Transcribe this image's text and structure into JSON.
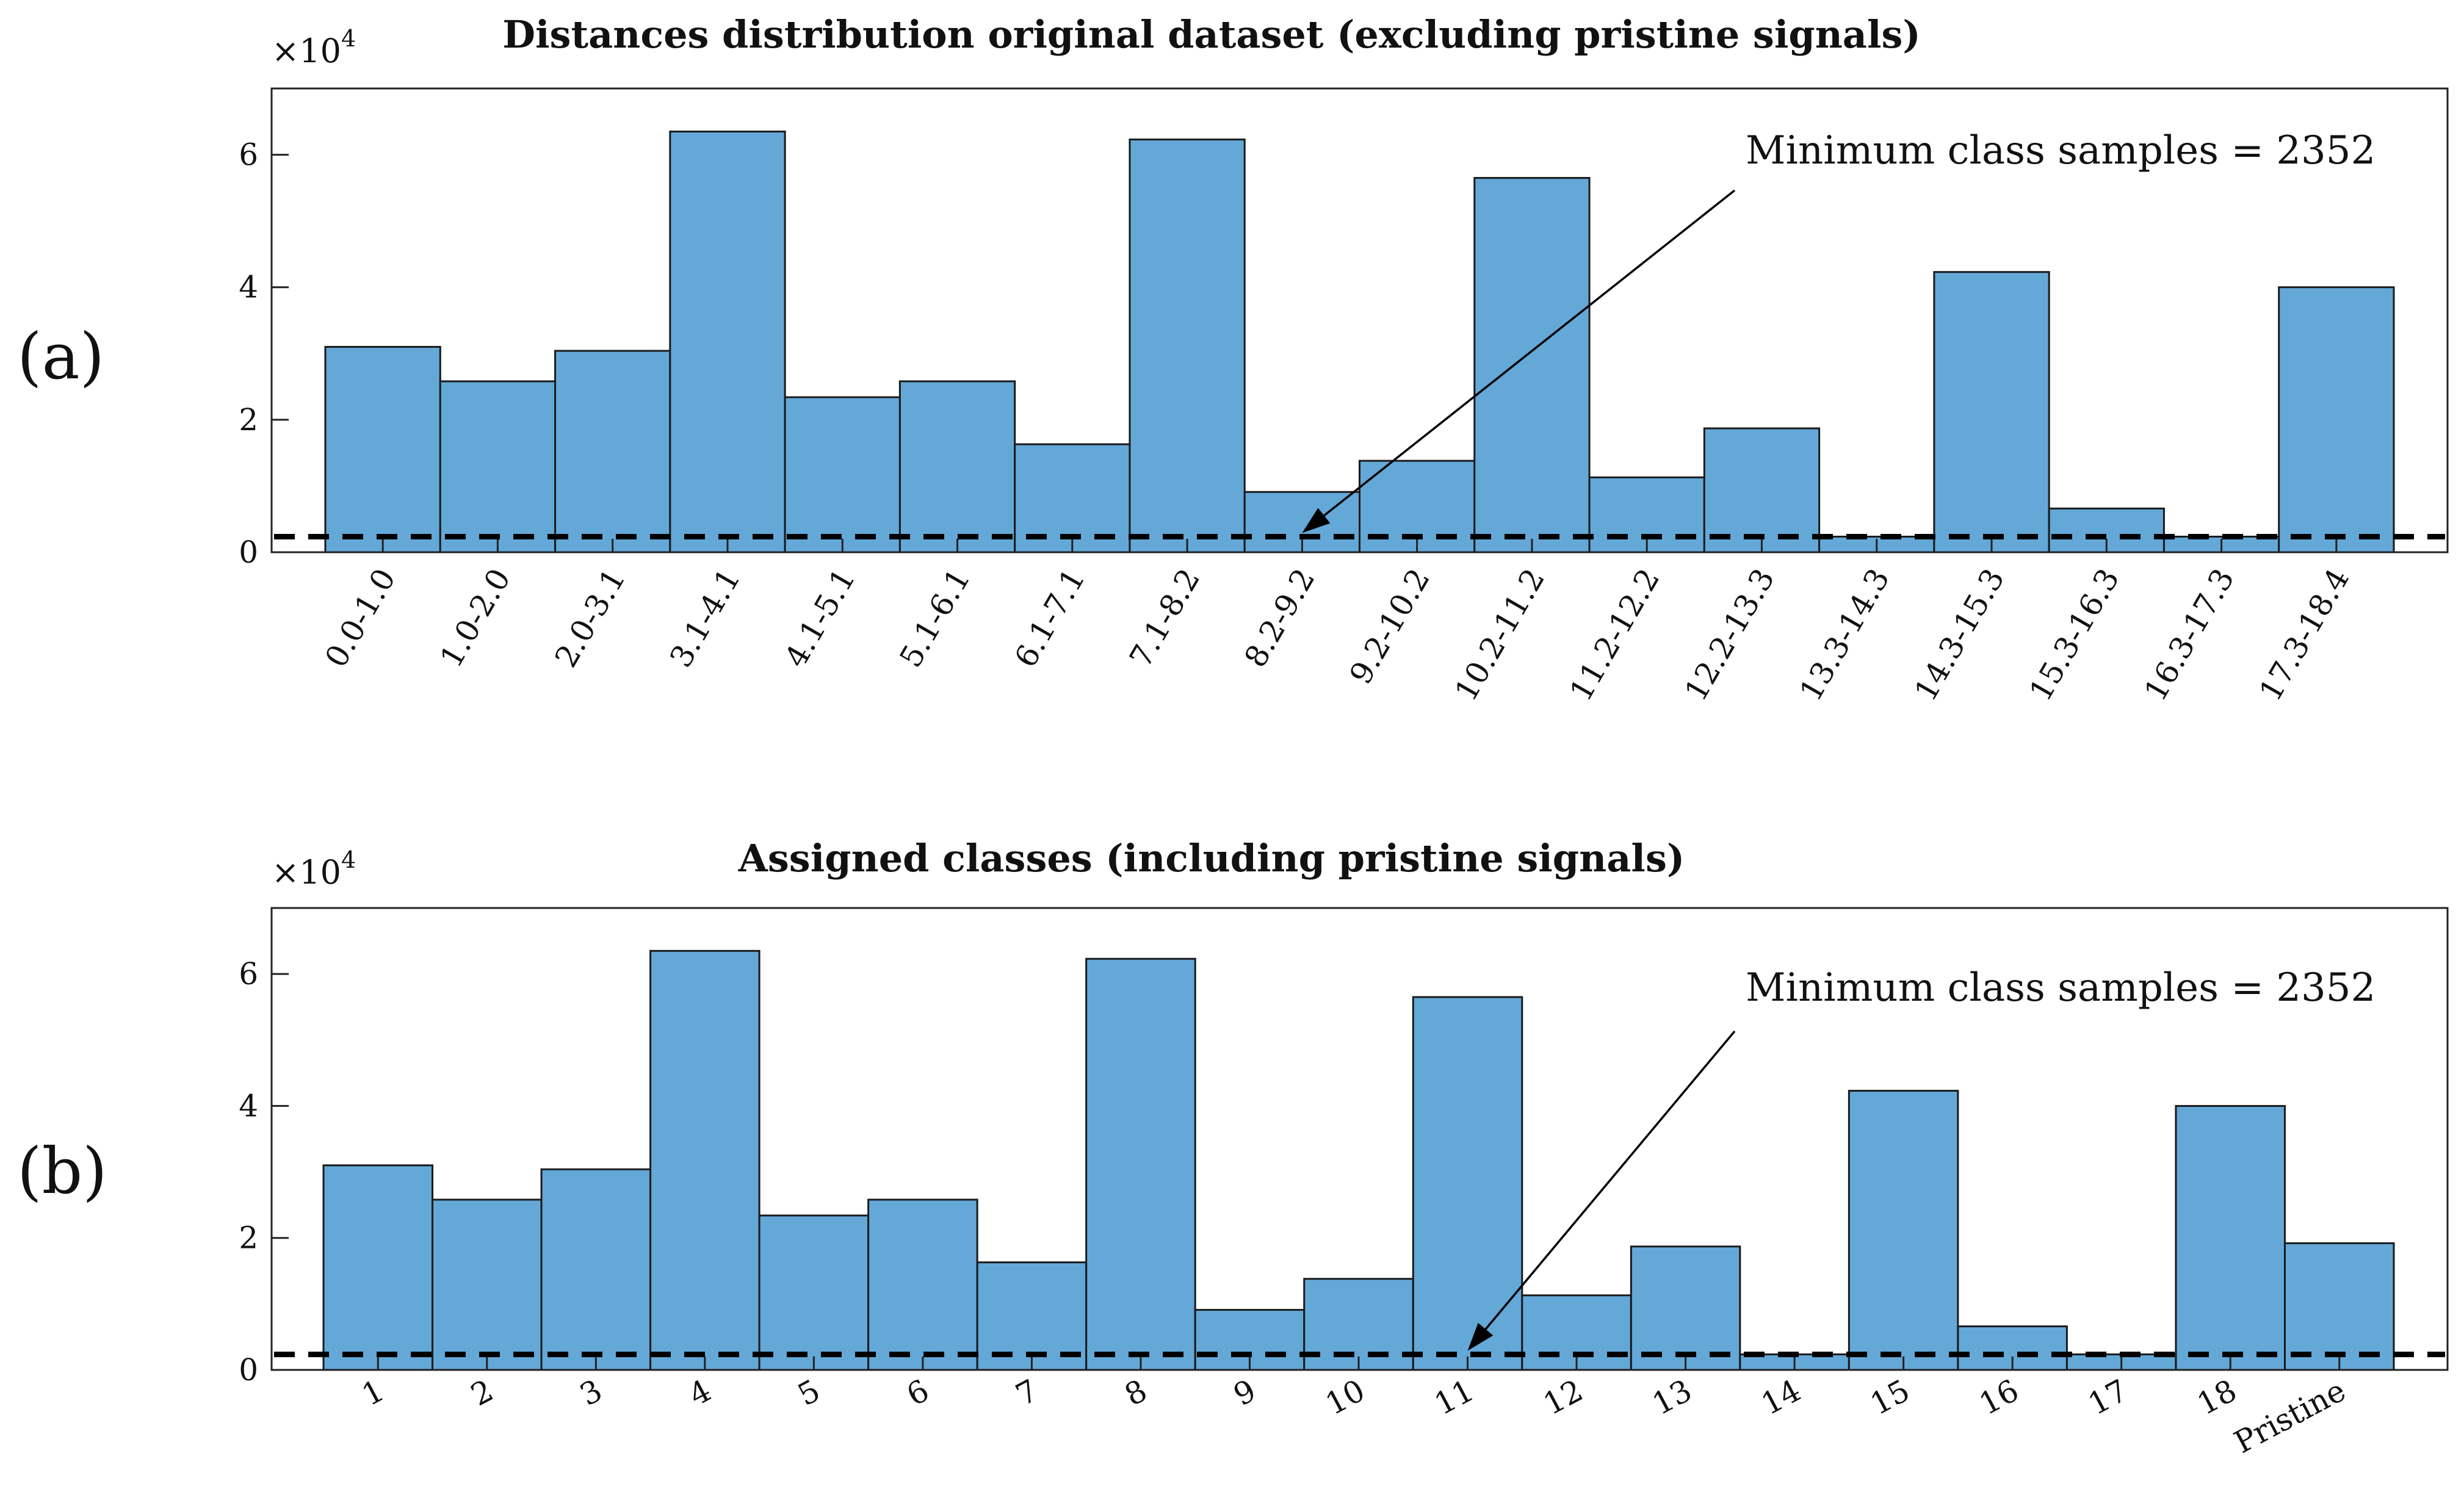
{
  "chart_data": [
    {
      "type": "bar",
      "panel_label": "(a)",
      "title": "Distances distribution original dataset (excluding pristine signals)",
      "exponent_label": {
        "base": "×10",
        "power": "4"
      },
      "categories": [
        "0.0-1.0",
        "1.0-2.0",
        "2.0-3.1",
        "3.1-4.1",
        "4.1-5.1",
        "5.1-6.1",
        "6.1-7.1",
        "7.1-8.2",
        "8.2-9.2",
        "9.2-10.2",
        "10.2-11.2",
        "11.2-12.2",
        "12.2-13.3",
        "13.3-14.3",
        "14.3-15.3",
        "15.3-16.3",
        "16.3-17.3",
        "17.3-18.4"
      ],
      "values": [
        31000,
        25800,
        30400,
        63500,
        23400,
        25800,
        16300,
        62300,
        9100,
        13800,
        56500,
        11300,
        18700,
        2352,
        42300,
        6600,
        2352,
        40000
      ],
      "ylim": [
        0,
        70000
      ],
      "yticks": [
        0,
        20000,
        40000,
        60000
      ],
      "ytick_labels": [
        "0",
        "2",
        "4",
        "6"
      ],
      "bar_color": "#64a8d8",
      "reference_line": {
        "value": 2352,
        "style": "dashed"
      },
      "annotation": {
        "text": "Minimum class samples = 2352",
        "points_to_category_index": 8
      },
      "xlabel": "",
      "ylabel": ""
    },
    {
      "type": "bar",
      "panel_label": "(b)",
      "title": "Assigned classes (including pristine signals)",
      "exponent_label": {
        "base": "×10",
        "power": "4"
      },
      "categories": [
        "1",
        "2",
        "3",
        "4",
        "5",
        "6",
        "7",
        "8",
        "9",
        "10",
        "11",
        "12",
        "13",
        "14",
        "15",
        "16",
        "17",
        "18",
        "Pristine"
      ],
      "values": [
        31000,
        25800,
        30400,
        63500,
        23400,
        25800,
        16300,
        62300,
        9100,
        13800,
        56500,
        11300,
        18700,
        2352,
        42300,
        6600,
        2352,
        40000,
        19200
      ],
      "ylim": [
        0,
        70000
      ],
      "yticks": [
        0,
        20000,
        40000,
        60000
      ],
      "ytick_labels": [
        "0",
        "2",
        "4",
        "6"
      ],
      "bar_color": "#64a8d8",
      "reference_line": {
        "value": 2352,
        "style": "dashed"
      },
      "annotation": {
        "text": "Minimum class samples = 2352",
        "points_to_category_index": 10
      },
      "xlabel": "",
      "ylabel": ""
    }
  ]
}
